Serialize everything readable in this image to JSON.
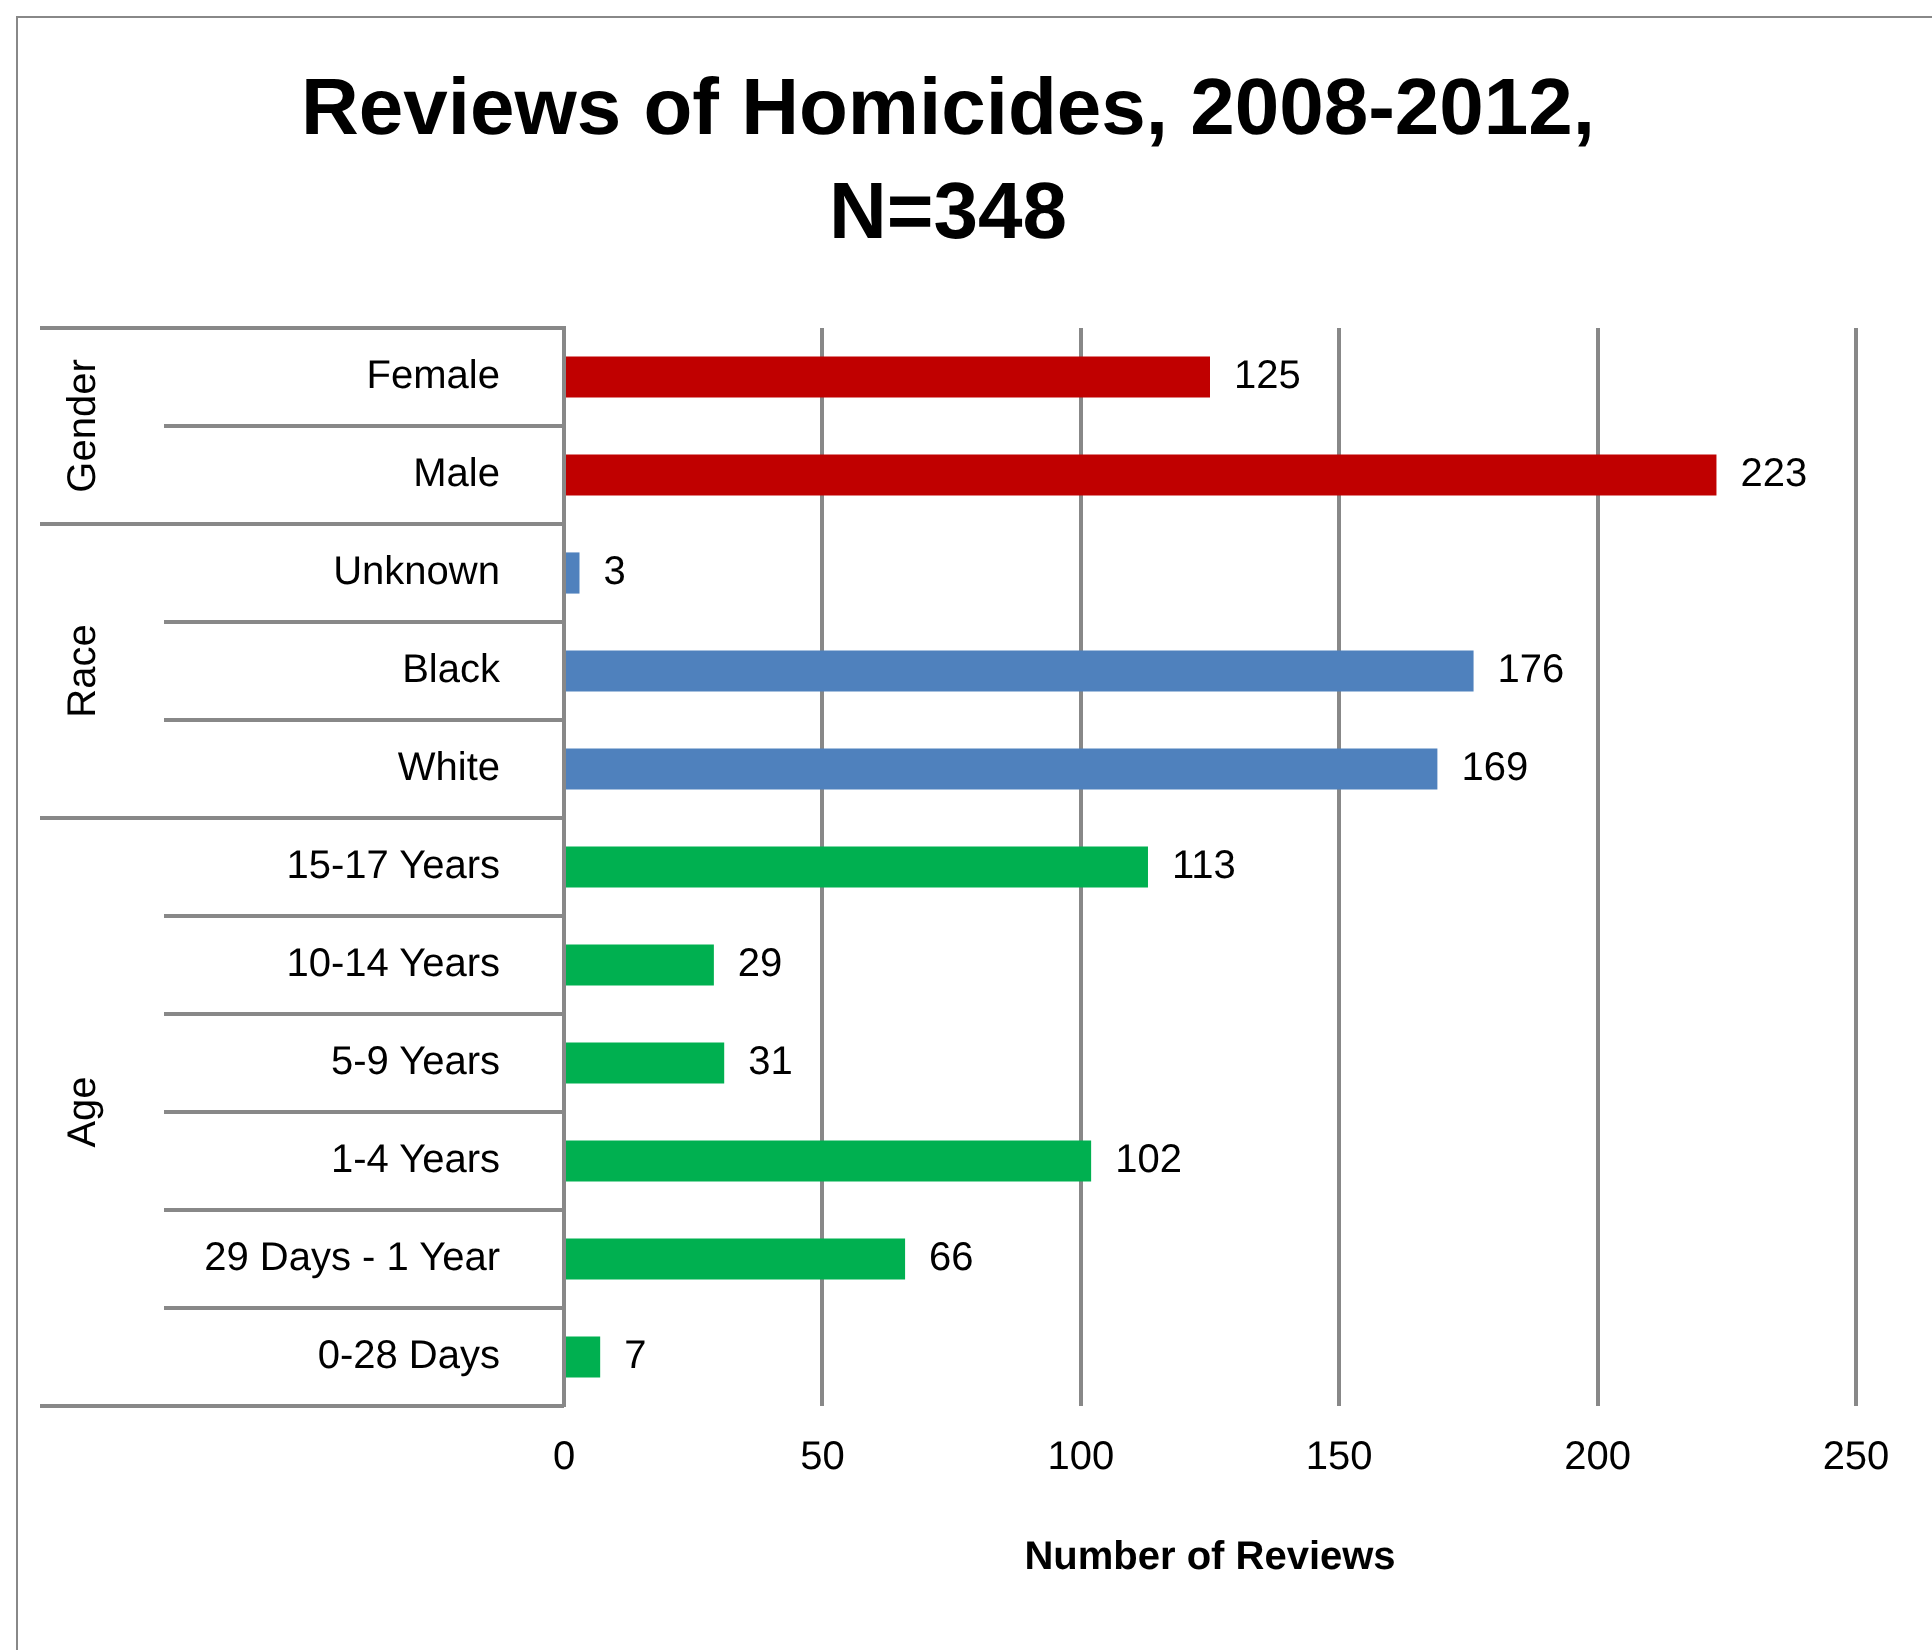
{
  "chart_data": {
    "type": "bar",
    "orientation": "horizontal",
    "title": "Reviews of Homicides, 2008-2012, N=348",
    "xlabel": "Number of Reviews",
    "categories": [
      "Female",
      "Male",
      "Unknown",
      "Black",
      "White",
      "15-17 Years",
      "10-14 Years",
      "5-9 Years",
      "1-4 Years",
      "29 Days - 1 Year",
      "0-28 Days"
    ],
    "series": [
      {
        "color": "#c00000",
        "values": [
          125,
          223,
          null,
          null,
          null,
          null,
          null,
          null,
          null,
          null,
          null
        ]
      },
      {
        "color": "#4f81bd",
        "values": [
          null,
          null,
          3,
          176,
          169,
          null,
          null,
          null,
          null,
          null,
          null
        ]
      },
      {
        "color": "#00b050",
        "values": [
          null,
          null,
          null,
          null,
          null,
          113,
          29,
          31,
          102,
          66,
          7
        ]
      }
    ],
    "xlim": [
      0,
      250
    ],
    "xticks": [
      0,
      50,
      100,
      150,
      200,
      250
    ],
    "annotations": [
      "Gender",
      "Race",
      "Age"
    ],
    "grid": "x",
    "legend": false,
    "data_labels": true
  }
}
